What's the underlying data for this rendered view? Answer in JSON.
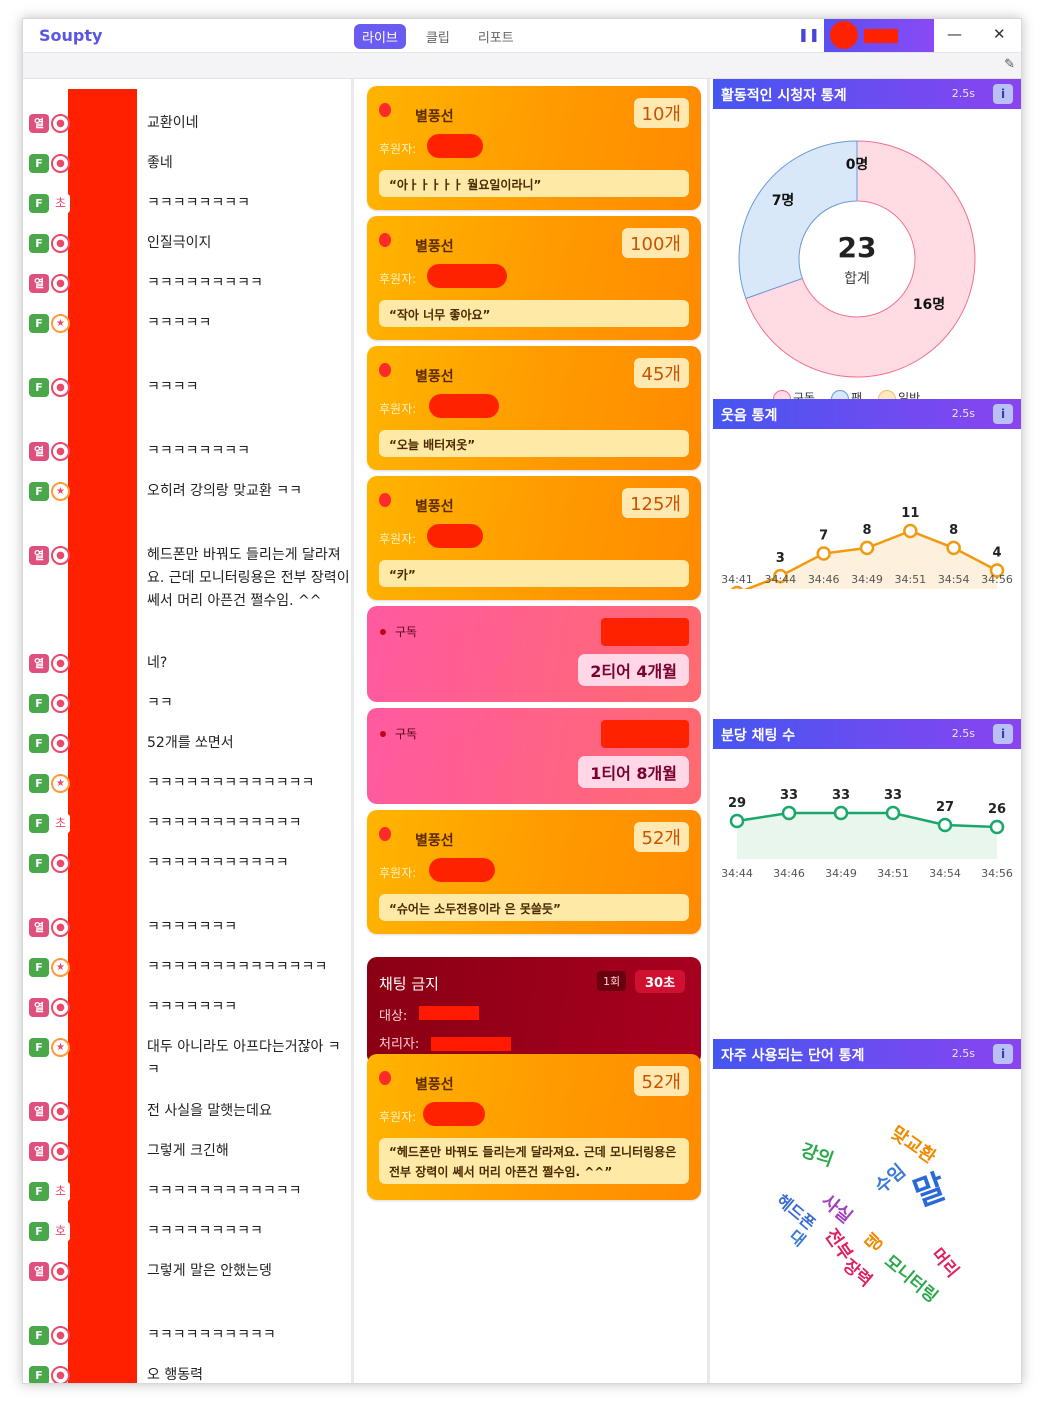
{
  "app": {
    "title": "Soupty"
  },
  "tabs": [
    {
      "label": "라이브",
      "active": true
    },
    {
      "label": "클립",
      "active": false
    },
    {
      "label": "리포트",
      "active": false
    }
  ],
  "window_buttons": {
    "minimize": "—",
    "close": "✕"
  },
  "chat": {
    "floating_badge": "N",
    "messages": [
      {
        "badge1": "열",
        "badge2": "ring",
        "text": "교환이네"
      },
      {
        "badge1": "F",
        "badge2": "ring",
        "text": "좋네"
      },
      {
        "badge1": "F",
        "badge2": "초",
        "text": "ㅋㅋㅋㅋㅋㅋㅋㅋ"
      },
      {
        "badge1": "F",
        "badge2": "ring",
        "text": "인질극이지"
      },
      {
        "badge1": "열",
        "badge2": "ring",
        "text": "ㅋㅋㅋㅋㅋㅋㅋㅋㅋ"
      },
      {
        "badge1": "F",
        "badge2": "star",
        "text": "ㅋㅋㅋㅋㅋ"
      },
      {
        "badge1": "F",
        "badge2": "ring",
        "text": "ㅋㅋㅋㅋ"
      },
      {
        "badge1": "열",
        "badge2": "ring",
        "text": "ㅋㅋㅋㅋㅋㅋㅋㅋ"
      },
      {
        "badge1": "F",
        "badge2": "star",
        "text": "오히려 강의랑 맞교환 ㅋㅋ"
      },
      {
        "badge1": "열",
        "badge2": "ring",
        "text": "헤드폰만 바꿔도 들리는게 달라져요. 근데 모니터링용은 전부 장력이 쎄서 머리 아픈건 쩔수임. ^^"
      },
      {
        "badge1": "열",
        "badge2": "ring",
        "text": "네?"
      },
      {
        "badge1": "F",
        "badge2": "ring",
        "text": "ㅋㅋ"
      },
      {
        "badge1": "F",
        "badge2": "ring",
        "text": "52개를 쏘면서"
      },
      {
        "badge1": "F",
        "badge2": "star",
        "text": "ㅋㅋㅋㅋㅋㅋㅋㅋㅋㅋㅋㅋㅋ"
      },
      {
        "badge1": "F",
        "badge2": "초",
        "text": "ㅋㅋㅋㅋㅋㅋㅋㅋㅋㅋㅋㅋ"
      },
      {
        "badge1": "F",
        "badge2": "ring",
        "text": "ㅋㅋㅋㅋㅋㅋㅋㅋㅋㅋㅋ"
      },
      {
        "badge1": "열",
        "badge2": "ring",
        "text": "ㅋㅋㅋㅋㅋㅋㅋ"
      },
      {
        "badge1": "F",
        "badge2": "star",
        "text": "ㅋㅋㅋㅋㅋㅋㅋㅋㅋㅋㅋㅋㅋㅋ"
      },
      {
        "badge1": "열",
        "badge2": "ring",
        "text": "ㅋㅋㅋㅋㅋㅋㅋ"
      },
      {
        "badge1": "F",
        "badge2": "star",
        "text": "대두 아니라도 아프다는거잖아 ㅋㅋ"
      },
      {
        "badge1": "열",
        "badge2": "ring",
        "text": "전 사실을 말햇는데요"
      },
      {
        "badge1": "열",
        "badge2": "ring",
        "text": "그렇게 크긴해"
      },
      {
        "badge1": "F",
        "badge2": "초",
        "text": "ㅋㅋㅋㅋㅋㅋㅋㅋㅋㅋㅋㅋ"
      },
      {
        "badge1": "F",
        "badge2": "호",
        "text": "ㅋㅋㅋㅋㅋㅋㅋㅋㅋ"
      },
      {
        "badge1": "열",
        "badge2": "ring",
        "text": "그렇게 말은 안했는뎅"
      },
      {
        "badge1": "F",
        "badge2": "ring",
        "text": "ㅋㅋㅋㅋㅋㅋㅋㅋㅋㅋ"
      },
      {
        "badge1": "F",
        "badge2": "ring",
        "text": "오 행동력"
      }
    ]
  },
  "feed": {
    "sponsor_label": "후원자:",
    "balloon_title": "별풍선",
    "balloons": [
      {
        "count": "10개",
        "quote": "“아ㅏㅏㅏㅏㅏ 월요일이라니”"
      },
      {
        "count": "100개",
        "quote": "“작아 너무 좋아요”"
      },
      {
        "count": "45개",
        "quote": "“오늘 배터져옷”"
      },
      {
        "count": "125개",
        "quote": "“카”"
      },
      {
        "count": "52개",
        "quote": "“슈어는 소두전용이라 은 못쓸듯”"
      },
      {
        "count": "52개",
        "quote": "“헤드폰만 바꿔도 들리는게 달라져요. 근데 모니터링용은 전부 장력이 쎄서 머리 아픈건 쩔수임. ^^”"
      }
    ],
    "subscriptions": [
      {
        "title": "구독",
        "tier": "2티어 4개월"
      },
      {
        "title": "구독",
        "tier": "1티어 8개월"
      }
    ],
    "ban": {
      "title": "채팅 금지",
      "count": "1회",
      "duration": "30초",
      "target_label": "대상:",
      "handler_label": "처리자:"
    }
  },
  "stats": {
    "viewers": {
      "title": "활동적인 시청자 통계",
      "interval": "2.5s",
      "info": "i",
      "total": "23",
      "total_label": "합계",
      "slices": [
        {
          "name": "구독",
          "value": 16,
          "label": "16명",
          "color": "#ffdce4",
          "stroke": "#f07090"
        },
        {
          "name": "팬",
          "value": 7,
          "label": "7명",
          "color": "#d8e8f8",
          "stroke": "#6a9ad8"
        },
        {
          "name": "일반",
          "value": 0,
          "label": "0명",
          "color": "#fde9c0",
          "stroke": "#f0c060"
        }
      ]
    },
    "laughs": {
      "title": "웃음 통계",
      "interval": "2.5s",
      "info": "i",
      "x": [
        "34:41",
        "34:44",
        "34:46",
        "34:49",
        "34:51",
        "34:54",
        "34:56"
      ],
      "values": [
        0,
        3,
        7,
        8,
        11,
        8,
        4
      ],
      "labels": [
        "",
        "3",
        "7",
        "8",
        "11",
        "8",
        "4"
      ],
      "color": "#f09a10"
    },
    "chats": {
      "title": "분당 채팅 수",
      "interval": "2.5s",
      "info": "i",
      "x": [
        "34:44",
        "34:46",
        "34:49",
        "34:51",
        "34:54",
        "34:56"
      ],
      "values": [
        29,
        33,
        33,
        33,
        27,
        26
      ],
      "labels": [
        "29",
        "33",
        "33",
        "33",
        "27",
        "26"
      ],
      "color": "#1aa86a"
    },
    "words": {
      "title": "자주 사용되는 단어 통계",
      "interval": "2.5s",
      "info": "i",
      "items": [
        {
          "text": "강의",
          "color": "#2aa84a"
        },
        {
          "text": "맞교환",
          "color": "#f08a00"
        },
        {
          "text": "수임",
          "color": "#3a7ad8"
        },
        {
          "text": "말",
          "color": "#2a6ad8"
        },
        {
          "text": "헤드폰",
          "color": "#3a6ad8"
        },
        {
          "text": "사실",
          "color": "#a040c0"
        },
        {
          "text": "대",
          "color": "#3a7ad8"
        },
        {
          "text": "전부",
          "color": "#e02060"
        },
        {
          "text": "뎅",
          "color": "#f08a00"
        },
        {
          "text": "장력",
          "color": "#e02060"
        },
        {
          "text": "모니터링",
          "color": "#2aa84a"
        },
        {
          "text": "머리",
          "color": "#e02060"
        }
      ]
    }
  }
}
